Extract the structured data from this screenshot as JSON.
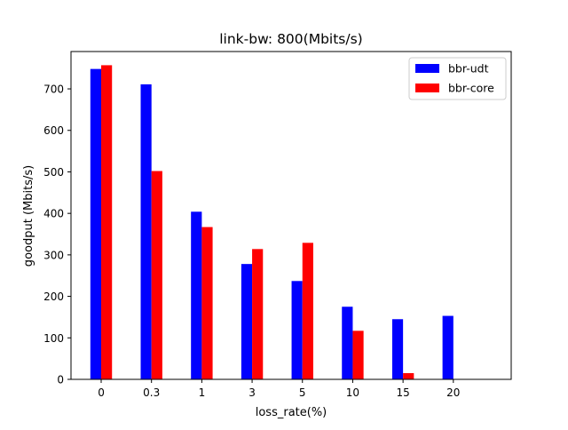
{
  "chart_data": {
    "type": "bar",
    "title": "link-bw: 800(Mbits/s)",
    "xlabel": "loss_rate(%)",
    "ylabel": "goodput (Mbits/s)",
    "categories": [
      "0",
      "0.3",
      "1",
      "3",
      "5",
      "10",
      "15",
      "20"
    ],
    "series": [
      {
        "name": "bbr-udt",
        "color": "#0000ff",
        "values": [
          748,
          711,
          404,
          278,
          237,
          175,
          145,
          153
        ]
      },
      {
        "name": "bbr-core",
        "color": "#ff0000",
        "values": [
          757,
          502,
          367,
          314,
          329,
          117,
          15,
          0
        ]
      }
    ],
    "ylim": [
      0,
      790
    ],
    "yticks": [
      0,
      100,
      200,
      300,
      400,
      500,
      600,
      700
    ],
    "grid": false,
    "legend_position": "top-right"
  }
}
